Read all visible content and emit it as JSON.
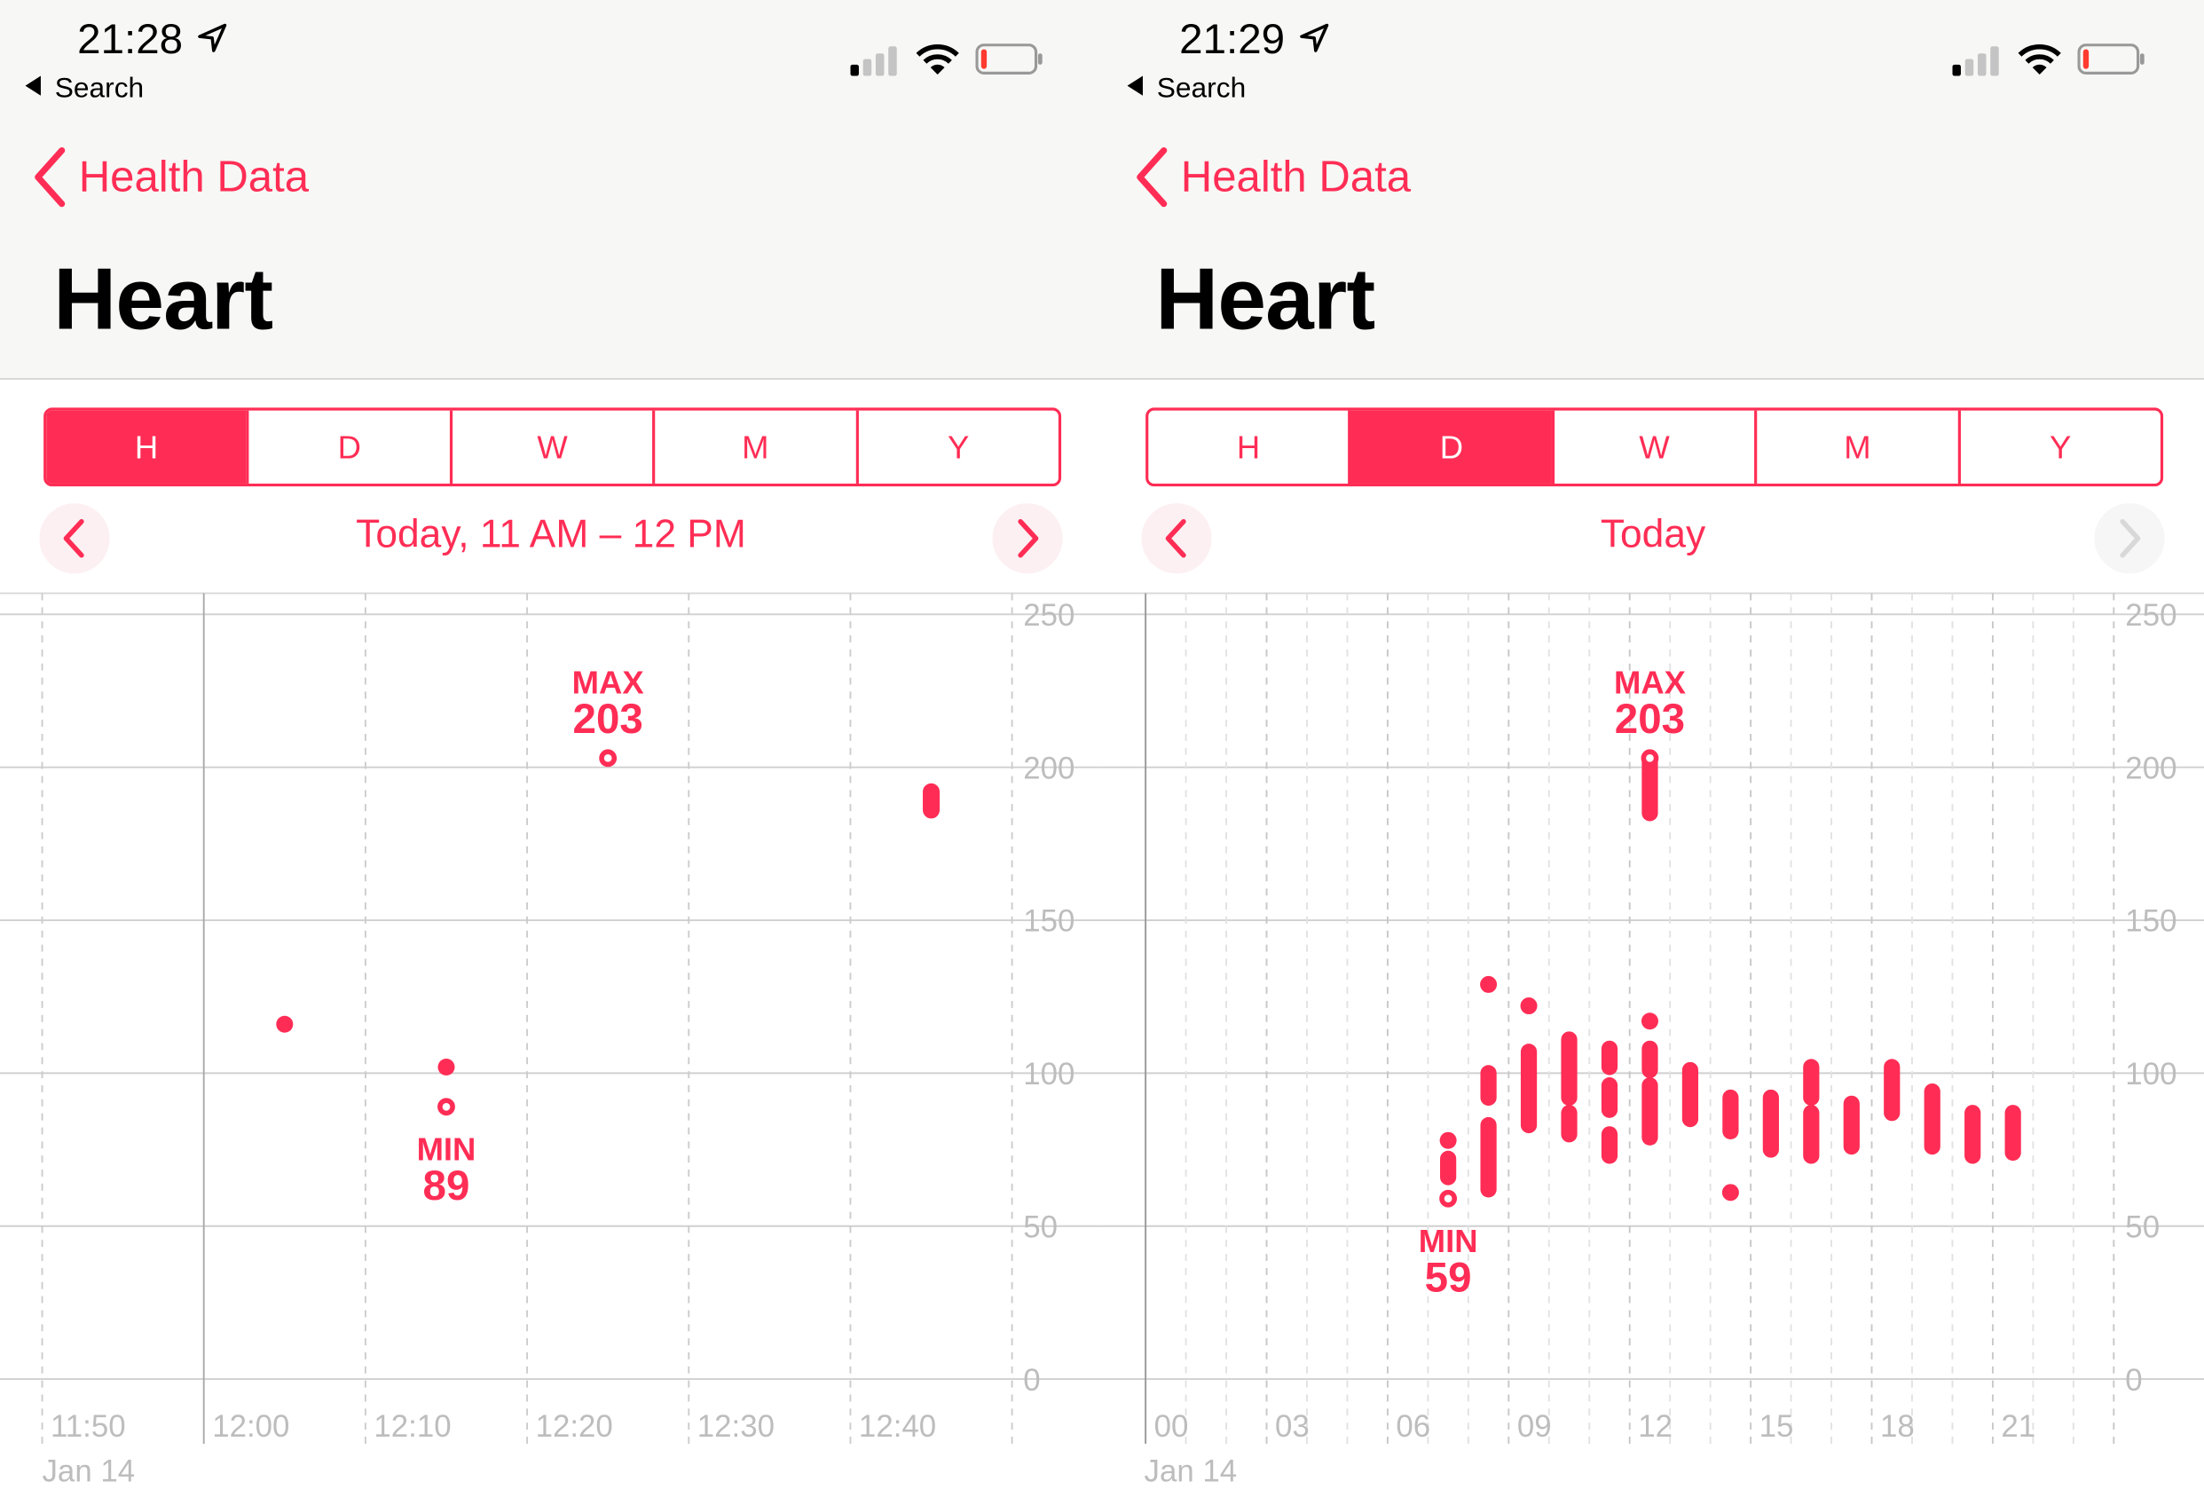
{
  "colors": {
    "accent": "#ff2d55",
    "grid": "#d0d0d0",
    "axis_label": "#bdbdbd",
    "header_bg": "#f7f7f5"
  },
  "panels": [
    {
      "status": {
        "time": "21:28",
        "back_app": "Search",
        "icons": [
          "location-arrow-icon",
          "cellular-signal-icon",
          "wifi-icon",
          "battery-low-icon"
        ]
      },
      "nav": {
        "back_label": "Health Data",
        "title": "Heart"
      },
      "segments": [
        "H",
        "D",
        "W",
        "M",
        "Y"
      ],
      "active_segment": "H",
      "range_label": "Today, 11 AM – 12 PM",
      "next_enabled": true,
      "chart_data": {
        "type": "scatter",
        "x_unit": "time",
        "x_ticks": [
          "11:50",
          "12:00",
          "12:10",
          "12:20",
          "12:30",
          "12:40"
        ],
        "x_sublabel": "Jan 14",
        "y_ticks": [
          250,
          200,
          150,
          100,
          50,
          0
        ],
        "ylim": [
          0,
          250
        ],
        "points": [
          {
            "time": "12:05",
            "low": 116,
            "high": 116
          },
          {
            "time": "12:15",
            "low": 102,
            "high": 102
          },
          {
            "time": "12:15",
            "low": 89,
            "high": 89,
            "marker": "open"
          },
          {
            "time": "12:25",
            "low": 203,
            "high": 203,
            "marker": "open"
          },
          {
            "time": "12:45",
            "low": 186,
            "high": 192
          }
        ],
        "annotations": [
          {
            "label": "MAX",
            "value": "203",
            "time": "12:25",
            "bpm": 203,
            "position": "above"
          },
          {
            "label": "MIN",
            "value": "89",
            "time": "12:15",
            "bpm": 89,
            "position": "below"
          }
        ]
      }
    },
    {
      "status": {
        "time": "21:29",
        "back_app": "Search",
        "icons": [
          "location-arrow-icon",
          "cellular-signal-icon",
          "wifi-icon",
          "battery-low-icon"
        ]
      },
      "nav": {
        "back_label": "Health Data",
        "title": "Heart"
      },
      "segments": [
        "H",
        "D",
        "W",
        "M",
        "Y"
      ],
      "active_segment": "D",
      "range_label": "Today",
      "next_enabled": false,
      "chart_data": {
        "type": "scatter",
        "x_unit": "hour",
        "x_ticks": [
          "00",
          "03",
          "06",
          "09",
          "12",
          "15",
          "18",
          "21"
        ],
        "x_sublabel": "Jan 14",
        "y_ticks": [
          250,
          200,
          150,
          100,
          50,
          0
        ],
        "ylim": [
          0,
          250
        ],
        "points": [
          {
            "hour": 7,
            "low": 78,
            "high": 78
          },
          {
            "hour": 7,
            "low": 66,
            "high": 72
          },
          {
            "hour": 7,
            "low": 59,
            "high": 59,
            "marker": "open"
          },
          {
            "hour": 8,
            "low": 129,
            "high": 129
          },
          {
            "hour": 8,
            "low": 92,
            "high": 100
          },
          {
            "hour": 8,
            "low": 62,
            "high": 83
          },
          {
            "hour": 9,
            "low": 122,
            "high": 122
          },
          {
            "hour": 9,
            "low": 83,
            "high": 107
          },
          {
            "hour": 10,
            "low": 92,
            "high": 111
          },
          {
            "hour": 10,
            "low": 80,
            "high": 87
          },
          {
            "hour": 11,
            "low": 102,
            "high": 108
          },
          {
            "hour": 11,
            "low": 88,
            "high": 96
          },
          {
            "hour": 11,
            "low": 73,
            "high": 80
          },
          {
            "hour": 12,
            "low": 185,
            "high": 203,
            "marker": "open-top"
          },
          {
            "hour": 12,
            "low": 117,
            "high": 117
          },
          {
            "hour": 12,
            "low": 101,
            "high": 108
          },
          {
            "hour": 12,
            "low": 79,
            "high": 96
          },
          {
            "hour": 13,
            "low": 85,
            "high": 101
          },
          {
            "hour": 14,
            "low": 81,
            "high": 92
          },
          {
            "hour": 14,
            "low": 61,
            "high": 61
          },
          {
            "hour": 15,
            "low": 75,
            "high": 92
          },
          {
            "hour": 16,
            "low": 92,
            "high": 102
          },
          {
            "hour": 16,
            "low": 73,
            "high": 87
          },
          {
            "hour": 17,
            "low": 76,
            "high": 90
          },
          {
            "hour": 18,
            "low": 87,
            "high": 102
          },
          {
            "hour": 19,
            "low": 76,
            "high": 94
          },
          {
            "hour": 20,
            "low": 73,
            "high": 87
          },
          {
            "hour": 21,
            "low": 74,
            "high": 87
          }
        ],
        "annotations": [
          {
            "label": "MAX",
            "value": "203",
            "hour": 12,
            "bpm": 203,
            "position": "above"
          },
          {
            "label": "MIN",
            "value": "59",
            "hour": 7,
            "bpm": 59,
            "position": "below"
          }
        ]
      }
    }
  ]
}
